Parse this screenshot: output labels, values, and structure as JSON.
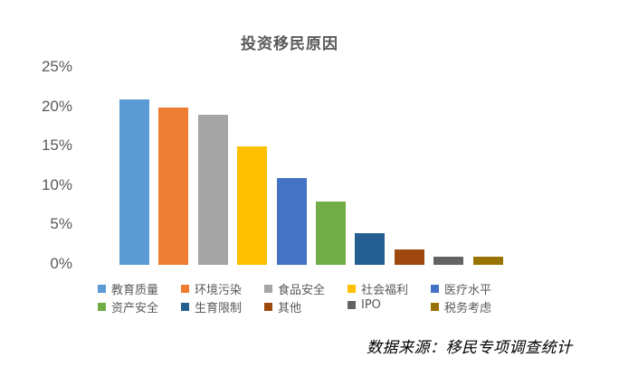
{
  "chart_data": {
    "type": "bar",
    "title": "投资移民原因",
    "xlabel": "",
    "ylabel": "",
    "ylim": [
      0,
      25
    ],
    "yticks": [
      "0%",
      "5%",
      "10%",
      "15%",
      "20%",
      "25%"
    ],
    "grid": false,
    "legend_position": "bottom",
    "categories": [
      "教育质量",
      "环境污染",
      "食品安全",
      "社会福利",
      "医疗水平",
      "资产安全",
      "生育限制",
      "其他",
      "IPO",
      "税务考虑"
    ],
    "values": [
      21,
      20,
      19,
      15,
      11,
      8,
      4,
      2,
      1,
      1
    ],
    "colors": [
      "#5B9BD5",
      "#ED7D31",
      "#A5A5A5",
      "#FFC000",
      "#4472C4",
      "#70AD47",
      "#255E91",
      "#9E480E",
      "#636363",
      "#997300"
    ],
    "annotation": "数据来源：移民专项调查统计"
  },
  "title": "投资移民原因",
  "source": "数据来源：移民专项调查统计"
}
